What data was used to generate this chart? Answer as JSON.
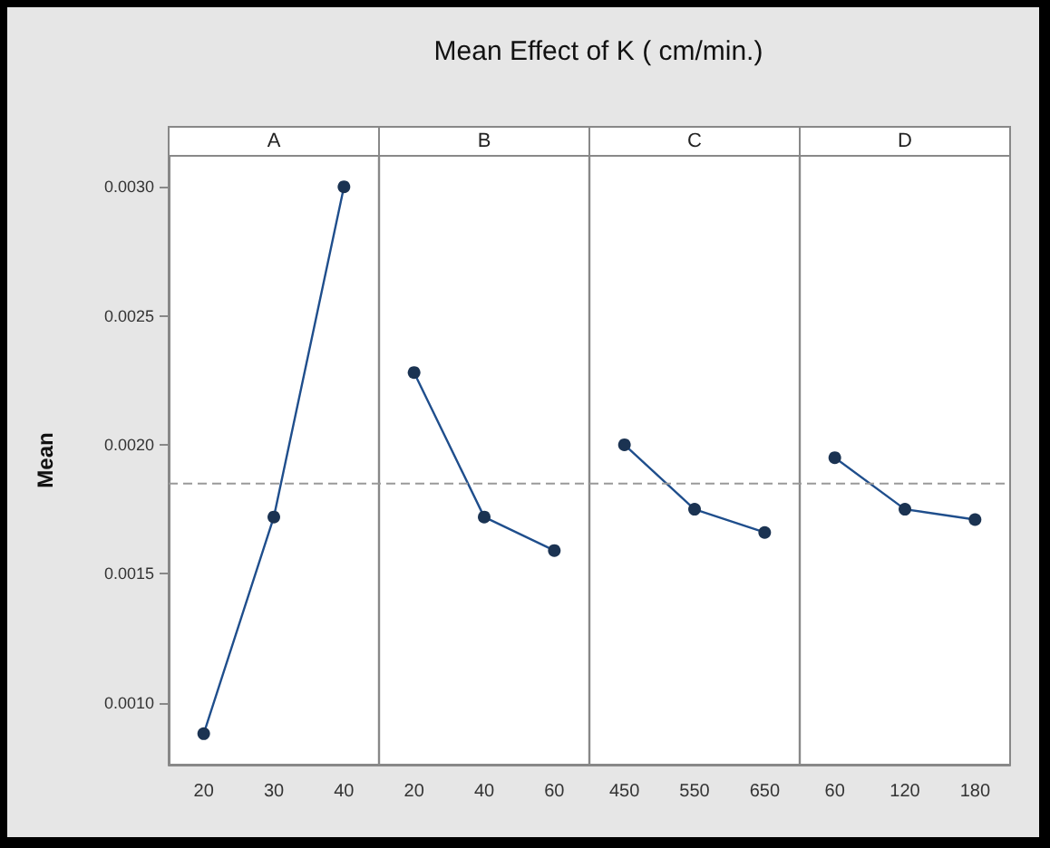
{
  "chart_data": {
    "type": "line",
    "title": "Mean Effect of K ( cm/min.)",
    "ylabel": "Mean",
    "categories": [
      "20",
      "30",
      "40",
      "20",
      "40",
      "60",
      "450",
      "550",
      "650",
      "60",
      "120",
      "180"
    ],
    "series": [
      {
        "color": "#1f4e8c",
        "values": [
          0.00088,
          0.00172,
          0.003,
          null,
          null,
          null,
          null,
          null,
          null,
          null,
          null,
          null
        ]
      },
      {
        "color": "#1f4e8c",
        "values": [
          null,
          null,
          null,
          0.00228,
          0.00172,
          0.00159,
          null,
          null,
          null,
          null,
          null,
          null
        ]
      },
      {
        "color": "#1f4e8c",
        "values": [
          null,
          null,
          null,
          null,
          null,
          null,
          0.002,
          0.00175,
          0.00166,
          null,
          null,
          null
        ]
      },
      {
        "color": "#1f4e8c",
        "values": [
          null,
          null,
          null,
          null,
          null,
          null,
          null,
          null,
          null,
          0.00195,
          0.00175,
          0.00171
        ]
      }
    ],
    "annotations": [
      "A",
      "B",
      "C",
      "D"
    ],
    "ylim": [
      0.00076,
      0.00312
    ],
    "yticks": [
      {
        "value": 0.001,
        "label": "0.0010"
      },
      {
        "value": 0.0015,
        "label": "0.0015"
      },
      {
        "value": 0.002,
        "label": "0.0020"
      },
      {
        "value": 0.0025,
        "label": "0.0025"
      },
      {
        "value": 0.003,
        "label": "0.0030"
      }
    ],
    "ref_lines": [
      {
        "axis": "y",
        "value": 0.00185,
        "color": "#999999",
        "line_style": "dashed"
      }
    ],
    "marker": "circle",
    "grid": false
  }
}
